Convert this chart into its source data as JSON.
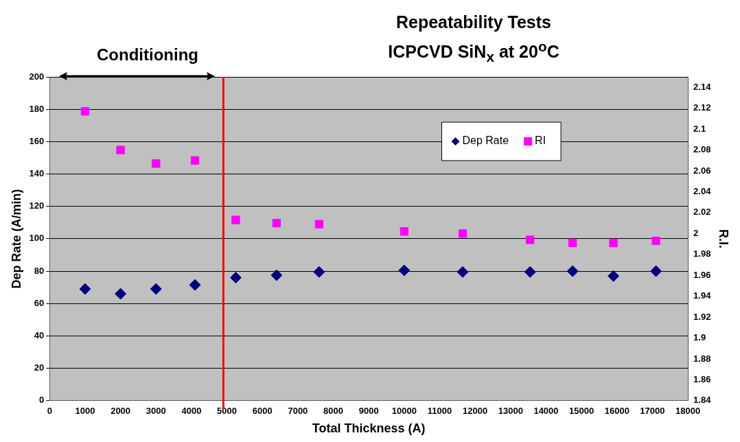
{
  "chart_data": {
    "type": "scatter",
    "title": "Repeatability Tests\nICPCVD SiN$_{x}$ at 20$^{o}$C",
    "xlabel": "Total Thickness (A)",
    "ylabel": "Dep Rate (A/min)",
    "y2label": "R.I.",
    "x": [
      1000,
      2000,
      3000,
      4100,
      5250,
      6400,
      7600,
      10000,
      11650,
      13550,
      14750,
      15900,
      17100
    ],
    "series": [
      {
        "name": "Dep Rate",
        "color": "#000080",
        "marker": "diamond",
        "values": [
          69,
          66,
          69,
          71.5,
          76,
          77.5,
          79.5,
          80.5,
          79.5,
          79.5,
          80,
          77,
          80
        ]
      },
      {
        "name": "RI",
        "color": "#ff00ff",
        "marker": "square",
        "axis": "y2",
        "values": [
          2.117,
          2.08,
          2.067,
          2.07,
          2.013,
          2.01,
          2.009,
          2.002,
          2,
          1.994,
          1.991,
          1.991,
          1.993
        ]
      }
    ],
    "xlim": [
      0,
      18000
    ],
    "xticks": [
      0,
      1000,
      2000,
      3000,
      4000,
      5000,
      6000,
      7000,
      8000,
      9000,
      10000,
      11000,
      12000,
      13000,
      14000,
      15000,
      16000,
      17000,
      18000
    ],
    "ylim": [
      0,
      200
    ],
    "yticks": [
      0,
      20,
      40,
      60,
      80,
      100,
      120,
      140,
      160,
      180,
      200
    ],
    "y2lim": [
      1.84,
      2.15
    ],
    "y2ticks": [
      1.84,
      1.86,
      1.88,
      1.9,
      1.92,
      1.94,
      1.96,
      1.98,
      2,
      2.02,
      2.04,
      2.06,
      2.08,
      2.1,
      2.12,
      2.14
    ],
    "ref_lines": [
      {
        "axis": "x",
        "value": 4900,
        "color": "#ff0000"
      }
    ],
    "annotations": [
      "Conditioning"
    ],
    "grid": "y",
    "legend": "top right"
  }
}
